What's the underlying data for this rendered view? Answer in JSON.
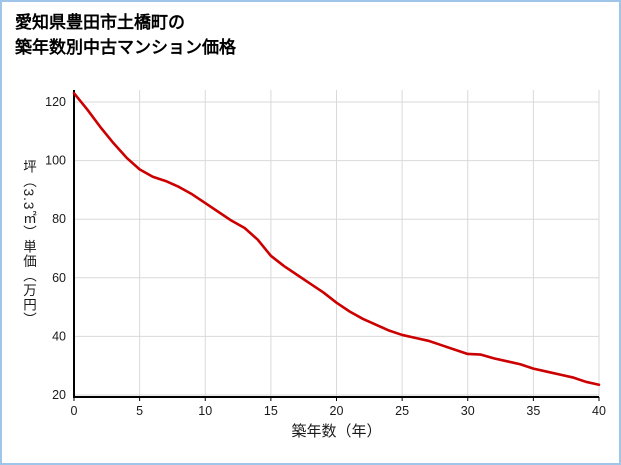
{
  "frame_border_color": "#9fc5e8",
  "title": {
    "line1": "愛知県豊田市土橋町の",
    "line2": "築年数別中古マンション価格"
  },
  "chart_data": {
    "type": "line",
    "title": "愛知県豊田市土橋町の築年数別中古マンション価格",
    "xlabel": "築年数（年）",
    "ylabel": "坪（3.3㎡）単価（万円）",
    "x": [
      0,
      1,
      2,
      3,
      4,
      5,
      6,
      7,
      8,
      9,
      10,
      11,
      12,
      13,
      14,
      15,
      16,
      17,
      18,
      19,
      20,
      21,
      22,
      23,
      24,
      25,
      26,
      27,
      28,
      29,
      30,
      31,
      32,
      33,
      34,
      35,
      36,
      37,
      38,
      39,
      40
    ],
    "y": [
      123,
      117.5,
      111.5,
      106,
      101,
      97,
      94.5,
      93,
      91,
      88.5,
      85.5,
      82.5,
      79.5,
      77,
      73,
      67.5,
      64,
      61,
      58,
      55,
      51.5,
      48.5,
      46,
      44,
      42,
      40.5,
      39.5,
      38.5,
      37,
      35.5,
      34,
      33.8,
      32.5,
      31.5,
      30.5,
      29,
      28,
      27,
      26,
      24.5,
      23.5
    ],
    "xlim": [
      0,
      40
    ],
    "ylim": [
      20,
      120
    ],
    "xticks": [
      0,
      5,
      10,
      15,
      20,
      25,
      30,
      35,
      40
    ],
    "yticks": [
      20,
      40,
      60,
      80,
      100,
      120
    ],
    "grid": true,
    "legend": "none",
    "line_color": "#cc0000",
    "grid_color": "#d9d9d9",
    "axis_color": "#000000"
  }
}
